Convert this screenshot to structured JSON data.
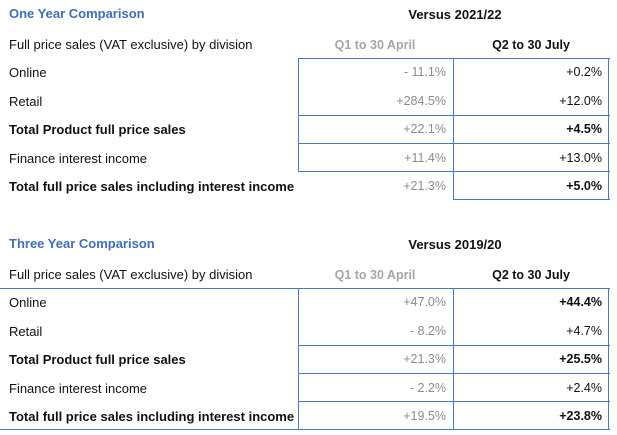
{
  "one_year": {
    "title": "One Year Comparison",
    "versus": "Versus 2021/22",
    "subheader": "Full price sales (VAT exclusive) by division",
    "col1": "Q1 to 30 April",
    "col2": "Q2 to 30 July",
    "rows": [
      {
        "label": "Online",
        "q1": "- 11.1%",
        "q2": "+0.2%"
      },
      {
        "label": "Retail",
        "q1": "+284.5%",
        "q2": "+12.0%"
      },
      {
        "label": "Total Product full price sales",
        "q1": "+22.1%",
        "q2": "+4.5%"
      },
      {
        "label": "Finance interest income",
        "q1": "+11.4%",
        "q2": "+13.0%"
      },
      {
        "label": "Total full price sales including interest income",
        "q1": "+21.3%",
        "q2": "+5.0%"
      }
    ]
  },
  "three_year": {
    "title": "Three Year Comparison",
    "versus": "Versus 2019/20",
    "subheader": "Full price sales (VAT exclusive) by division",
    "col1": "Q1 to 30 April",
    "col2": "Q2 to 30 July",
    "rows": [
      {
        "label": "Online",
        "q1": "+47.0%",
        "q2": "+44.4%"
      },
      {
        "label": "Retail",
        "q1": "- 8.2%",
        "q2": "+4.7%"
      },
      {
        "label": "Total Product full price sales",
        "q1": "+21.3%",
        "q2": "+25.5%"
      },
      {
        "label": "Finance interest income",
        "q1": "- 2.2%",
        "q2": "+2.4%"
      },
      {
        "label": "Total full price sales including interest income",
        "q1": "+19.5%",
        "q2": "+23.8%"
      }
    ]
  }
}
